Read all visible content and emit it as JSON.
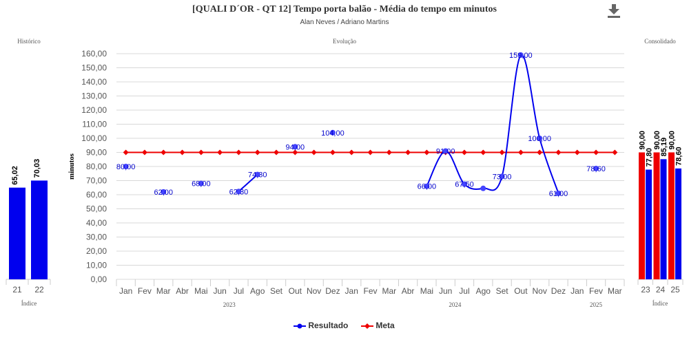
{
  "header": {
    "title": "[QUALI D´OR - QT 12] Tempo porta balão - Média do tempo em minutos",
    "subtitle": "Alan Neves / Adriano Martins",
    "download_icon": "download-icon"
  },
  "colors": {
    "result": "#0000ee",
    "meta": "#ee0000",
    "grid": "#d8d8d8",
    "axis_text": "#555555"
  },
  "legend": [
    {
      "label": "Resultado",
      "color": "#0000ee"
    },
    {
      "label": "Meta",
      "color": "#ee0000"
    }
  ],
  "chart_data": [
    {
      "type": "bar",
      "panel_title": "Histórico",
      "xlabel": "Índice",
      "categories": [
        "21",
        "22"
      ],
      "series": [
        {
          "name": "Resultado",
          "values": [
            65.02,
            70.03
          ],
          "labels": [
            "65,02",
            "70,03"
          ]
        }
      ],
      "ylim": [
        0,
        160
      ]
    },
    {
      "type": "line",
      "panel_title": "Evolução",
      "ylabel": "minutos",
      "ylim": [
        0,
        160
      ],
      "yticks": [
        "0,00",
        "10,00",
        "20,00",
        "30,00",
        "40,00",
        "50,00",
        "60,00",
        "70,00",
        "80,00",
        "90,00",
        "100,00",
        "110,00",
        "120,00",
        "130,00",
        "140,00",
        "150,00",
        "160,00"
      ],
      "categories": [
        "Jan",
        "Fev",
        "Mar",
        "Abr",
        "Mai",
        "Jun",
        "Jul",
        "Ago",
        "Set",
        "Out",
        "Nov",
        "Dez",
        "Jan",
        "Fev",
        "Mar",
        "Abr",
        "Mai",
        "Jun",
        "Jul",
        "Ago",
        "Set",
        "Out",
        "Nov",
        "Dez",
        "Jan",
        "Fev",
        "Mar"
      ],
      "years": [
        {
          "label": "2023",
          "start": 0,
          "end": 11
        },
        {
          "label": "2024",
          "start": 12,
          "end": 23
        },
        {
          "label": "2025",
          "start": 24,
          "end": 26
        }
      ],
      "series": [
        {
          "name": "Resultado",
          "values": [
            80.0,
            null,
            62.0,
            null,
            68.0,
            null,
            62.3,
            74.3,
            null,
            94.0,
            null,
            104.0,
            null,
            null,
            null,
            null,
            66.0,
            91.0,
            67.5,
            64.5,
            73.0,
            159.0,
            100.0,
            61.0,
            null,
            78.6,
            null
          ],
          "labels": [
            "80,00",
            "",
            "62,00",
            "",
            "68,00",
            "",
            "62,30",
            "74,30",
            "",
            "94,00",
            "",
            "104,00",
            "",
            "",
            "",
            "",
            "66,00",
            "91,00",
            "67,50",
            "",
            "73,00",
            "159,00",
            "100,00",
            "61,00",
            "",
            "78,60",
            ""
          ]
        },
        {
          "name": "Meta",
          "values": [
            90,
            90,
            90,
            90,
            90,
            90,
            90,
            90,
            90,
            90,
            90,
            90,
            90,
            90,
            90,
            90,
            90,
            90,
            90,
            90,
            90,
            90,
            90,
            90,
            90,
            90,
            90
          ]
        }
      ]
    },
    {
      "type": "bar",
      "panel_title": "Consolidado",
      "xlabel": "Índice",
      "categories": [
        "23",
        "24",
        "25"
      ],
      "series": [
        {
          "name": "Meta",
          "values": [
            90.0,
            90.0,
            90.0
          ],
          "labels": [
            "90,00",
            "90,00",
            "90,00"
          ]
        },
        {
          "name": "Resultado",
          "values": [
            77.8,
            85.19,
            78.6
          ],
          "labels": [
            "77,80",
            "85,19",
            "78,60"
          ]
        }
      ],
      "ylim": [
        0,
        160
      ]
    }
  ]
}
